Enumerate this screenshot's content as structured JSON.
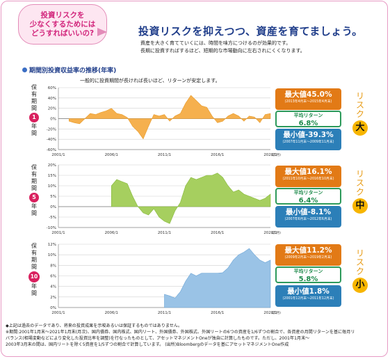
{
  "bubble": {
    "lines": [
      "投資リスクを",
      "少なくするためには",
      "どうすればいいの?"
    ]
  },
  "headline": "投資リスクを抑えつつ、資産を育てましょう。",
  "lead": [
    "資産を大きく育てていくには、時間を味方につけるのが効果的です。",
    "長期に投資すればするほど、短期的な市場動向に左右されにくくなります。"
  ],
  "section_title": "期間別投資収益率の推移(年率)",
  "chart_note": "一般的に投資期間が長ければ長いほど、リターンが安定します。",
  "periods": [
    {
      "top": [
        "保",
        "有",
        "期",
        "間"
      ],
      "num": "1",
      "bottom": [
        "年",
        "間"
      ]
    },
    {
      "top": [
        "保",
        "有",
        "期",
        "間"
      ],
      "num": "5",
      "bottom": [
        "年",
        "間"
      ]
    },
    {
      "top": [
        "保",
        "有",
        "期",
        "間"
      ],
      "num": "10",
      "bottom": [
        "年",
        "間"
      ]
    }
  ],
  "stats": [
    {
      "max": "最大値45.0%",
      "max_sub": "(2013年4月末〜2015年4月末)",
      "avg_label": "平均リターン",
      "avg": "6.8%",
      "min": "最小値-39.3%",
      "min_sub": "(2007年11月末〜2009年11月末)",
      "risk_text": [
        "リ",
        "ス",
        "ク"
      ],
      "risk_level": "大"
    },
    {
      "max": "最大値16.1%",
      "max_sub": "(2011年10月末〜2016年10月末)",
      "avg_label": "平均リターン",
      "avg": "6.4%",
      "min": "最小値-8.1%",
      "min_sub": "(2007年6月末〜2012年6月末)",
      "risk_text": [
        "リ",
        "ス",
        "ク"
      ],
      "risk_level": "中"
    },
    {
      "max": "最大値11.2%",
      "max_sub": "(2009年2月末〜2019年2月末)",
      "avg_label": "平均リターン",
      "avg": "5.8%",
      "min": "最小値1.8%",
      "min_sub": "(2001年12月末〜2011年12月末)",
      "risk_text": [
        "リ",
        "ス",
        "ク"
      ],
      "risk_level": "小"
    }
  ],
  "footnotes": [
    "◆上記は過去のデータであり、将来の投資成果を示唆あるいは保証するものではありません。",
    "※期間:2001年1月末〜2021年1月末(月次)、国内債券、国内株式、国内リート、外国債券、外国株式、外国リートの6つの資産を1/6ずつの割合で、各資産の月間リターンを基に毎月リ",
    "バランス(相場変動などにより変化した投資比率を調整)を行なったものとして、アセットマネジメントOneが独自に計算したものです。ただし、2001年1月末〜",
    "2003年3月末の間は、国内リートを除く5資産を1/5ずつの割合で計算しています。 (出所)Bloombergのデータを基にアセットマネジメントOne作成"
  ],
  "colors": {
    "chart1": "#f5b04e",
    "chart2": "#a6cf5f",
    "chart3": "#9ac3e6",
    "pink": "#d9215f",
    "navy": "#1f3d8a",
    "max": "#e27a16",
    "min": "#2c7fb8",
    "avg": "#2d9a5b"
  },
  "chart_data": [
    {
      "type": "area",
      "x_labels": [
        "2001/1",
        "2006/1",
        "2011/1",
        "2016/1",
        "2021/1"
      ],
      "x_unit": "(年/月)",
      "yticks": [
        "60%",
        "40%",
        "20%",
        "0%",
        "-20%",
        "-40%",
        "-60%"
      ],
      "ylim": [
        -60,
        60
      ],
      "x": [
        2002.0,
        2002.5,
        2003.0,
        2003.5,
        2004.0,
        2004.5,
        2005.0,
        2005.5,
        2006.0,
        2006.5,
        2007.0,
        2007.5,
        2008.0,
        2008.5,
        2009.0,
        2009.5,
        2010.0,
        2010.5,
        2011.0,
        2011.5,
        2012.0,
        2012.5,
        2013.0,
        2013.5,
        2014.0,
        2014.5,
        2015.0,
        2015.5,
        2016.0,
        2016.5,
        2017.0,
        2017.5,
        2018.0,
        2018.5,
        2019.0,
        2019.5,
        2020.0,
        2020.5,
        2021.0
      ],
      "values": [
        -5,
        -8,
        -10,
        0,
        10,
        8,
        12,
        15,
        20,
        10,
        8,
        2,
        -15,
        -25,
        -39.3,
        -15,
        8,
        5,
        8,
        -5,
        5,
        10,
        30,
        45,
        35,
        25,
        22,
        5,
        -8,
        -5,
        5,
        10,
        5,
        -5,
        5,
        3,
        -8,
        8,
        10
      ]
    },
    {
      "type": "area",
      "x_labels": [
        "2001/1",
        "2006/1",
        "2011/1",
        "2016/1",
        "2021/1"
      ],
      "x_unit": "(年/月)",
      "yticks": [
        "20%",
        "15%",
        "10%",
        "5%",
        "0%",
        "-5%",
        "-10%"
      ],
      "ylim": [
        -10,
        20
      ],
      "x": [
        2006.0,
        2006.5,
        2007.0,
        2007.5,
        2008.0,
        2008.5,
        2009.0,
        2009.5,
        2010.0,
        2010.5,
        2011.0,
        2011.5,
        2012.0,
        2012.5,
        2013.0,
        2013.5,
        2014.0,
        2014.5,
        2015.0,
        2015.5,
        2016.0,
        2016.5,
        2017.0,
        2017.5,
        2018.0,
        2018.5,
        2019.0,
        2019.5,
        2020.0,
        2020.5,
        2021.0
      ],
      "values": [
        10,
        13,
        12,
        11,
        5,
        0,
        -3,
        -4,
        -1,
        -5,
        -7,
        -8.1,
        -2,
        2,
        10,
        14,
        13,
        14,
        15,
        15,
        16.1,
        14,
        10,
        7,
        8,
        6,
        5,
        4,
        3,
        4,
        6
      ]
    },
    {
      "type": "area",
      "x_labels": [
        "2001/1",
        "2006/1",
        "2011/1",
        "2016/1",
        "2021/1"
      ],
      "x_unit": "(年/月)",
      "yticks": [
        "12%",
        "10%",
        "8%",
        "6%",
        "4%",
        "2%",
        "0%"
      ],
      "ylim": [
        0,
        12
      ],
      "x": [
        2011.0,
        2011.5,
        2012.0,
        2012.5,
        2013.0,
        2013.5,
        2014.0,
        2014.5,
        2015.0,
        2015.5,
        2016.0,
        2016.5,
        2017.0,
        2017.5,
        2018.0,
        2018.5,
        2019.0,
        2019.5,
        2020.0,
        2020.5,
        2021.0
      ],
      "values": [
        2.5,
        2.2,
        1.8,
        3,
        5,
        6.5,
        6,
        6.5,
        6.5,
        6.5,
        6.5,
        6.6,
        7.5,
        9,
        10,
        10.5,
        11.2,
        10,
        9,
        8.5,
        9
      ]
    }
  ]
}
